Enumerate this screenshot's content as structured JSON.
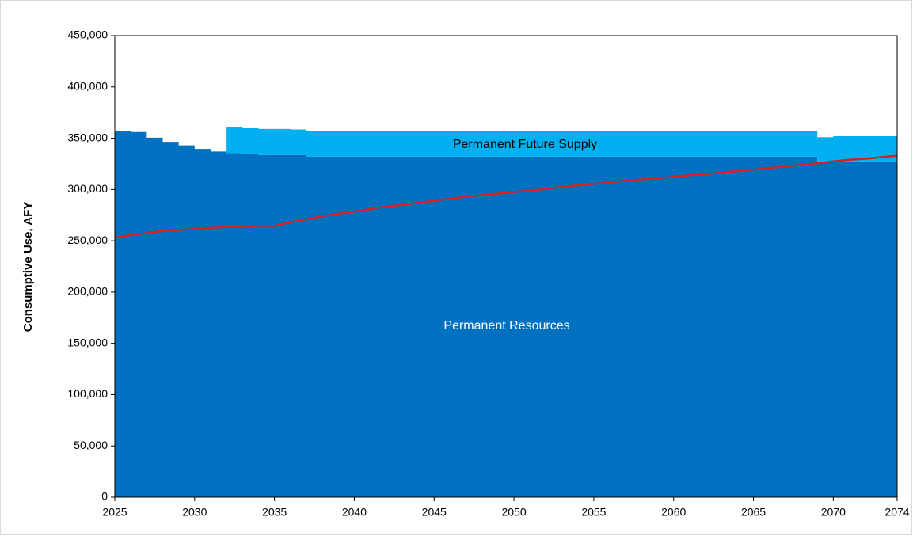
{
  "chart_data": {
    "type": "stacked_step_area_line",
    "y_label": "Consumptive Use, AFY",
    "x": [
      2025,
      2026,
      2027,
      2028,
      2029,
      2030,
      2031,
      2032,
      2033,
      2034,
      2035,
      2036,
      2037,
      2038,
      2039,
      2040,
      2041,
      2042,
      2043,
      2044,
      2045,
      2046,
      2047,
      2048,
      2049,
      2050,
      2051,
      2052,
      2053,
      2054,
      2055,
      2056,
      2057,
      2058,
      2059,
      2060,
      2061,
      2062,
      2063,
      2064,
      2065,
      2066,
      2067,
      2068,
      2069,
      2070,
      2071,
      2072,
      2073,
      2074
    ],
    "series": [
      {
        "name": "Permanent Resources",
        "color": "#0070c0",
        "kind": "area",
        "values": [
          357000,
          356000,
          350500,
          346500,
          343000,
          339500,
          337000,
          335500,
          335000,
          333500,
          333500,
          333500,
          332000,
          332000,
          332000,
          332000,
          332000,
          332000,
          332000,
          332000,
          332000,
          332000,
          332000,
          332000,
          332000,
          332000,
          332000,
          332000,
          332000,
          332000,
          332000,
          332000,
          332000,
          332000,
          332000,
          332000,
          332000,
          332000,
          332000,
          332000,
          332000,
          332000,
          332000,
          332000,
          327500,
          327500,
          327500,
          327500,
          327500,
          327500
        ]
      },
      {
        "name": "Permanent Future Supply",
        "color": "#00b0f0",
        "kind": "area",
        "values": [
          0,
          0,
          0,
          0,
          0,
          0,
          0,
          25000,
          24700,
          25500,
          25500,
          25000,
          25000,
          25000,
          25000,
          25000,
          25000,
          25000,
          25000,
          25000,
          25000,
          25000,
          25000,
          25000,
          25000,
          25000,
          25000,
          25000,
          25000,
          25000,
          25000,
          25000,
          25000,
          25000,
          25000,
          25000,
          25000,
          25000,
          25000,
          25000,
          25000,
          25000,
          25000,
          25000,
          23500,
          24500,
          24500,
          24500,
          24500,
          24500
        ]
      },
      {
        "color": "#d42020",
        "kind": "line",
        "values": [
          253000,
          255500,
          257500,
          259500,
          260500,
          261500,
          262500,
          263500,
          263500,
          264500,
          264500,
          268000,
          271000,
          274000,
          276500,
          278500,
          281000,
          283500,
          285000,
          287000,
          289000,
          291000,
          293000,
          294500,
          296000,
          297500,
          299000,
          300500,
          302500,
          304000,
          305500,
          307000,
          308500,
          310000,
          311000,
          312500,
          314000,
          315000,
          316500,
          318000,
          319500,
          321000,
          322500,
          324000,
          325500,
          327500,
          329000,
          330000,
          331500,
          333000
        ]
      }
    ],
    "xlim": [
      2025,
      2074
    ],
    "xticks": [
      2025,
      2030,
      2035,
      2040,
      2045,
      2050,
      2055,
      2060,
      2065,
      2070,
      2074
    ],
    "ylim": [
      0,
      450000
    ],
    "yticks": [
      0,
      {
        "value": 50000,
        "label": "50,000"
      },
      {
        "value": 100000,
        "label": "100,000"
      },
      {
        "value": 150000,
        "label": "150,000"
      },
      {
        "value": 200000,
        "label": "200,000"
      },
      {
        "value": 250000,
        "label": "250,000"
      },
      {
        "value": 300000,
        "label": "300,000"
      },
      {
        "value": 350000,
        "label": "350,000"
      },
      {
        "value": 400000,
        "label": "400,000"
      },
      {
        "value": 450000,
        "label": "450,000"
      }
    ]
  }
}
